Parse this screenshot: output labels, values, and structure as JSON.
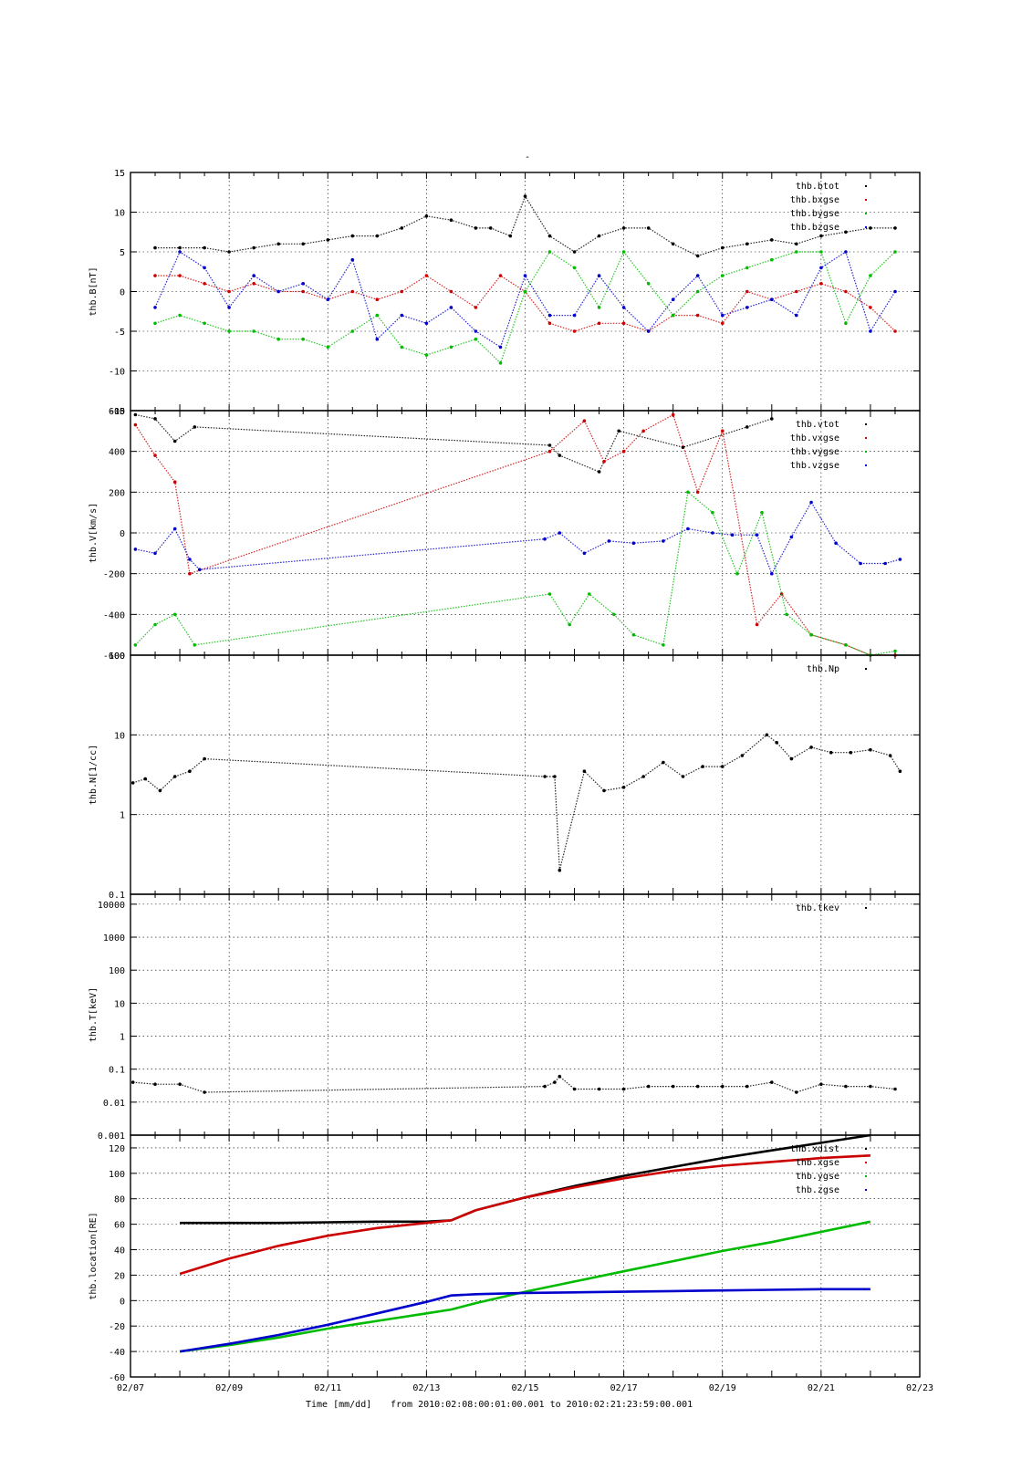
{
  "title": "-",
  "footer": {
    "xlabel": "Time [mm/dd]",
    "range_text": "from 2010:02:08:00:01:00.001  to  2010:02:21:23:59:00.001"
  },
  "x_axis": {
    "ticks": [
      "02/07",
      "02/09",
      "02/11",
      "02/13",
      "02/15",
      "02/17",
      "02/19",
      "02/21",
      "02/23"
    ],
    "tick_days": [
      7,
      9,
      11,
      13,
      15,
      17,
      19,
      21,
      23
    ],
    "xlim": [
      7,
      23
    ],
    "grid": true
  },
  "chart_data": [
    {
      "type": "scatter",
      "ylabel": "thb.B[nT]",
      "ylim": [
        -15,
        15
      ],
      "yscale": "linear",
      "yticks": [
        -15,
        -10,
        -5,
        0,
        5,
        10,
        15
      ],
      "ytick_labels": [
        "-15",
        "-10",
        "-5",
        "0",
        "5",
        "10",
        "15"
      ],
      "legend_position": "top-right",
      "series": [
        {
          "name": "thb.btot",
          "color": "#000000",
          "x": [
            7.5,
            8.0,
            8.5,
            9.0,
            9.5,
            10.0,
            10.5,
            11.0,
            11.5,
            12.0,
            12.5,
            13.0,
            13.5,
            14.0,
            14.3,
            14.7,
            15.0,
            15.5,
            16.0,
            16.5,
            17.0,
            17.5,
            18.0,
            18.5,
            19.0,
            19.5,
            20.0,
            20.5,
            21.0,
            21.5,
            22.0,
            22.5
          ],
          "y": [
            5.5,
            5.5,
            5.5,
            5,
            5.5,
            6,
            6,
            6.5,
            7,
            7,
            8,
            9.5,
            9,
            8,
            8,
            7,
            12,
            7,
            5,
            7,
            8,
            8,
            6,
            4.5,
            5.5,
            6,
            6.5,
            6,
            7,
            7.5,
            8,
            8
          ]
        },
        {
          "name": "thb.bxgse",
          "color": "#cc0000",
          "x": [
            7.5,
            8.0,
            8.5,
            9.0,
            9.5,
            10.0,
            10.5,
            11.0,
            11.5,
            12.0,
            12.5,
            13.0,
            13.5,
            14.0,
            14.5,
            15.0,
            15.5,
            16.0,
            16.5,
            17.0,
            17.5,
            18.0,
            18.5,
            19.0,
            19.5,
            20.0,
            20.5,
            21.0,
            21.5,
            22.0,
            22.5
          ],
          "y": [
            2,
            2,
            1,
            0,
            1,
            0,
            0,
            -1,
            0,
            -1,
            0,
            2,
            0,
            -2,
            2,
            0,
            -4,
            -5,
            -4,
            -4,
            -5,
            -3,
            -3,
            -4,
            0,
            -1,
            0,
            1,
            0,
            -2,
            -5
          ]
        },
        {
          "name": "thb.bygse",
          "color": "#00bb00",
          "x": [
            7.5,
            8.0,
            8.5,
            9.0,
            9.5,
            10.0,
            10.5,
            11.0,
            11.5,
            12.0,
            12.5,
            13.0,
            13.5,
            14.0,
            14.5,
            15.0,
            15.5,
            16.0,
            16.5,
            17.0,
            17.5,
            18.0,
            18.5,
            19.0,
            19.5,
            20.0,
            20.5,
            21.0,
            21.5,
            22.0,
            22.5
          ],
          "y": [
            -4,
            -3,
            -4,
            -5,
            -5,
            -6,
            -6,
            -7,
            -5,
            -3,
            -7,
            -8,
            -7,
            -6,
            -9,
            0,
            5,
            3,
            -2,
            5,
            1,
            -3,
            0,
            2,
            3,
            4,
            5,
            5,
            -4,
            2,
            5
          ]
        },
        {
          "name": "thb.bzgse",
          "color": "#0000cc",
          "x": [
            7.5,
            8.0,
            8.5,
            9.0,
            9.5,
            10.0,
            10.5,
            11.0,
            11.5,
            12.0,
            12.5,
            13.0,
            13.5,
            14.0,
            14.5,
            15.0,
            15.5,
            16.0,
            16.5,
            17.0,
            17.5,
            18.0,
            18.5,
            19.0,
            19.5,
            20.0,
            20.5,
            21.0,
            21.5,
            22.0,
            22.5
          ],
          "y": [
            -2,
            5,
            3,
            -2,
            2,
            0,
            1,
            -1,
            4,
            -6,
            -3,
            -4,
            -2,
            -5,
            -7,
            2,
            -3,
            -3,
            2,
            -2,
            -5,
            -1,
            2,
            -3,
            -2,
            -1,
            -3,
            3,
            5,
            -5,
            0
          ]
        }
      ]
    },
    {
      "type": "scatter",
      "ylabel": "thb.V[km/s]",
      "ylim": [
        -600,
        600
      ],
      "yscale": "linear",
      "yticks": [
        -600,
        -400,
        -200,
        0,
        200,
        400,
        600
      ],
      "ytick_labels": [
        "-600",
        "-400",
        "-200",
        "0",
        "200",
        "400",
        "600"
      ],
      "legend_position": "top-right",
      "series": [
        {
          "name": "thb.vtot",
          "color": "#000000",
          "x": [
            7.1,
            7.5,
            7.9,
            8.3,
            15.5,
            15.7,
            16.5,
            16.9,
            18.2,
            19.5,
            20.0
          ],
          "y": [
            580,
            560,
            450,
            520,
            430,
            380,
            300,
            500,
            420,
            520,
            560
          ]
        },
        {
          "name": "thb.vxgse",
          "color": "#cc0000",
          "x": [
            7.1,
            7.5,
            7.9,
            8.2,
            15.5,
            16.2,
            16.6,
            17.0,
            17.4,
            18.0,
            18.5,
            19.0,
            19.7,
            20.2,
            20.8,
            21.5,
            22.0,
            22.5
          ],
          "y": [
            530,
            380,
            250,
            -200,
            400,
            550,
            350,
            400,
            500,
            580,
            200,
            500,
            -450,
            -300,
            -500,
            -550,
            -600,
            -600
          ]
        },
        {
          "name": "thb.vygse",
          "color": "#00bb00",
          "x": [
            7.1,
            7.5,
            7.9,
            8.3,
            15.5,
            15.9,
            16.3,
            16.8,
            17.2,
            17.8,
            18.3,
            18.8,
            19.3,
            19.8,
            20.3,
            20.8,
            21.5,
            22.0,
            22.5
          ],
          "y": [
            -550,
            -450,
            -400,
            -550,
            -300,
            -450,
            -300,
            -400,
            -500,
            -550,
            200,
            100,
            -200,
            100,
            -400,
            -500,
            -550,
            -600,
            -580
          ]
        },
        {
          "name": "thb.vzgse",
          "color": "#0000cc",
          "x": [
            7.1,
            7.5,
            7.9,
            8.2,
            8.4,
            15.4,
            15.7,
            16.2,
            16.7,
            17.2,
            17.8,
            18.3,
            18.8,
            19.2,
            19.7,
            20.0,
            20.4,
            20.8,
            21.3,
            21.8,
            22.3,
            22.6
          ],
          "y": [
            -80,
            -100,
            20,
            -130,
            -180,
            -30,
            0,
            -100,
            -40,
            -50,
            -40,
            20,
            0,
            -10,
            -10,
            -200,
            -20,
            150,
            -50,
            -150,
            -150,
            -130
          ]
        }
      ]
    },
    {
      "type": "scatter",
      "ylabel": "thb.N[1/cc]",
      "ylim": [
        0.1,
        100
      ],
      "yscale": "log",
      "yticks": [
        0.1,
        1,
        10,
        100
      ],
      "ytick_labels": [
        "0.1",
        "1",
        "10",
        "100"
      ],
      "legend_position": "top-right",
      "series": [
        {
          "name": "thb.Np",
          "color": "#000000",
          "x": [
            7.05,
            7.3,
            7.6,
            7.9,
            8.2,
            8.5,
            15.4,
            15.6,
            15.7,
            16.2,
            16.6,
            17.0,
            17.4,
            17.8,
            18.2,
            18.6,
            19.0,
            19.4,
            19.9,
            20.1,
            20.4,
            20.8,
            21.2,
            21.6,
            22.0,
            22.4,
            22.6
          ],
          "y": [
            2.5,
            2.8,
            2,
            3,
            3.5,
            5,
            3,
            3,
            0.2,
            3.5,
            2,
            2.2,
            3,
            4.5,
            3,
            4,
            4,
            5.5,
            10,
            8,
            5,
            7,
            6,
            6,
            6.5,
            5.5,
            3.5
          ]
        }
      ]
    },
    {
      "type": "scatter",
      "ylabel": "thb.T[keV]",
      "ylim": [
        0.001,
        20000
      ],
      "yscale": "log",
      "yticks": [
        0.001,
        0.01,
        0.1,
        1,
        10,
        100,
        1000,
        10000
      ],
      "ytick_labels": [
        "0.001",
        "0.01",
        "0.1",
        "1",
        "10",
        "100",
        "1000",
        "10000"
      ],
      "legend_position": "top-right",
      "series": [
        {
          "name": "thb.tkev",
          "color": "#000000",
          "x": [
            7.05,
            7.5,
            8.0,
            8.5,
            15.4,
            15.6,
            15.7,
            16.0,
            16.5,
            17.0,
            17.5,
            18.0,
            18.5,
            19.0,
            19.5,
            20.0,
            20.5,
            21.0,
            21.5,
            22.0,
            22.5
          ],
          "y": [
            0.04,
            0.035,
            0.035,
            0.02,
            0.03,
            0.04,
            0.06,
            0.025,
            0.025,
            0.025,
            0.03,
            0.03,
            0.03,
            0.03,
            0.03,
            0.04,
            0.02,
            0.035,
            0.03,
            0.03,
            0.025
          ]
        }
      ]
    },
    {
      "type": "line",
      "ylabel": "thb.location[RE]",
      "ylim": [
        -60,
        130
      ],
      "yscale": "linear",
      "yticks": [
        -60,
        -40,
        -20,
        0,
        20,
        40,
        60,
        80,
        100,
        120
      ],
      "ytick_labels": [
        "-60",
        "-40",
        "-20",
        "0",
        "20",
        "40",
        "60",
        "80",
        "100",
        "120"
      ],
      "legend_position": "top-right",
      "series": [
        {
          "name": "thb.xdist",
          "color": "#000000",
          "x": [
            8,
            9,
            10,
            11,
            12,
            13,
            13.5,
            14,
            15,
            16,
            17,
            18,
            19,
            20,
            21,
            22
          ],
          "y": [
            61,
            61,
            61,
            61.5,
            62,
            62,
            63,
            71,
            81,
            90,
            98,
            105,
            112,
            118,
            124,
            130
          ]
        },
        {
          "name": "thb.xgse",
          "color": "#cc0000",
          "x": [
            8,
            9,
            10,
            11,
            12,
            13,
            13.5,
            14,
            15,
            16,
            17,
            18,
            19,
            20,
            21,
            22
          ],
          "y": [
            21,
            33,
            43,
            51,
            57,
            61,
            63,
            71,
            81,
            89,
            96,
            102,
            106,
            109,
            112,
            114
          ]
        },
        {
          "name": "thb.ygse",
          "color": "#00bb00",
          "x": [
            8,
            9,
            10,
            11,
            12,
            13,
            13.5,
            14,
            15,
            16,
            17,
            18,
            19,
            20,
            21,
            22
          ],
          "y": [
            -40,
            -35,
            -29,
            -22,
            -16,
            -10,
            -7,
            -2,
            7,
            15,
            23,
            31,
            39,
            46,
            54,
            62
          ]
        },
        {
          "name": "thb.zgse",
          "color": "#0000cc",
          "x": [
            8,
            9,
            10,
            11,
            12,
            13,
            13.5,
            14,
            15,
            16,
            17,
            18,
            19,
            20,
            21,
            22
          ],
          "y": [
            -40,
            -34,
            -27,
            -19,
            -10,
            -1,
            4,
            5,
            6,
            6.5,
            7,
            7.5,
            8,
            8.5,
            9,
            9
          ]
        }
      ]
    }
  ]
}
